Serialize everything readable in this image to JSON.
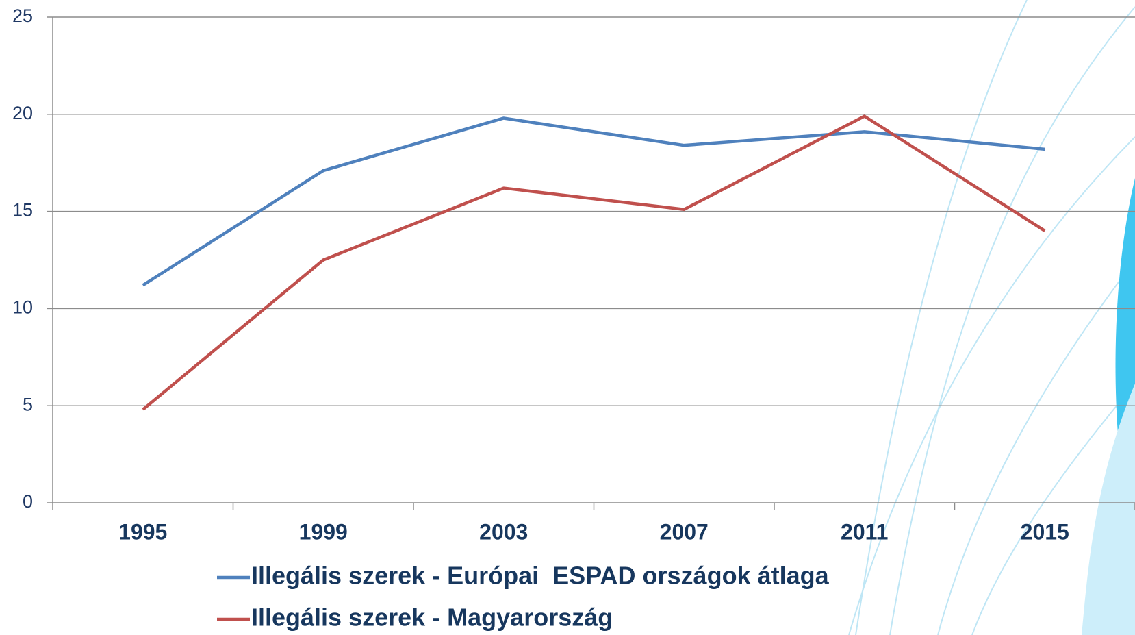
{
  "chart_data": {
    "type": "line",
    "categories": [
      "1995",
      "1999",
      "2003",
      "2007",
      "2011",
      "2015"
    ],
    "series": [
      {
        "name": "Illegális szerek - Európai  ESPAD országok átlaga",
        "color": "#4f81bd",
        "values": [
          11.2,
          17.1,
          19.8,
          18.4,
          19.1,
          18.2
        ]
      },
      {
        "name": "Illegális szerek - Magyarország",
        "color": "#c0504d",
        "values": [
          4.8,
          12.5,
          16.2,
          15.1,
          19.9,
          14.0
        ]
      }
    ],
    "ylim": [
      0,
      25
    ],
    "yticks": [
      0,
      5,
      10,
      15,
      20,
      25
    ],
    "grid": true,
    "legend": "bottom"
  }
}
